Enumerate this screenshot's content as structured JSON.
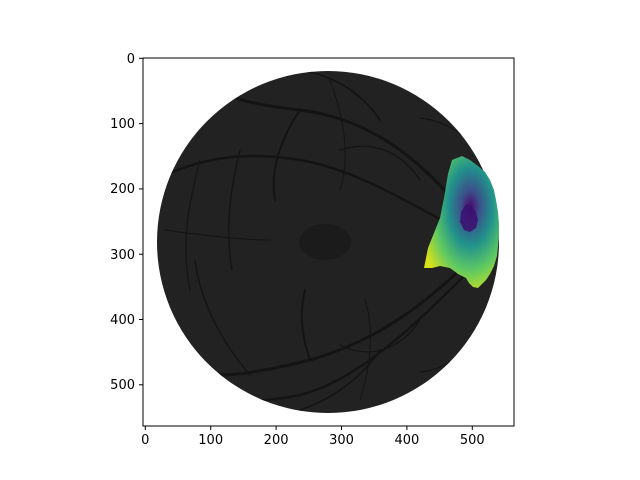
{
  "image_axes": {
    "x_ticks": [
      "0",
      "100",
      "200",
      "300",
      "400",
      "500"
    ],
    "y_ticks": [
      "0",
      "100",
      "200",
      "300",
      "400",
      "500"
    ],
    "x_range": [
      0,
      565
    ],
    "y_range": [
      565,
      0
    ]
  },
  "colors": {
    "background": "#ffffff",
    "fundus": "#222222",
    "vessel": "#141414",
    "heatmap_low": "#440154",
    "heatmap_mid": "#21918c",
    "heatmap_high": "#fde725"
  }
}
